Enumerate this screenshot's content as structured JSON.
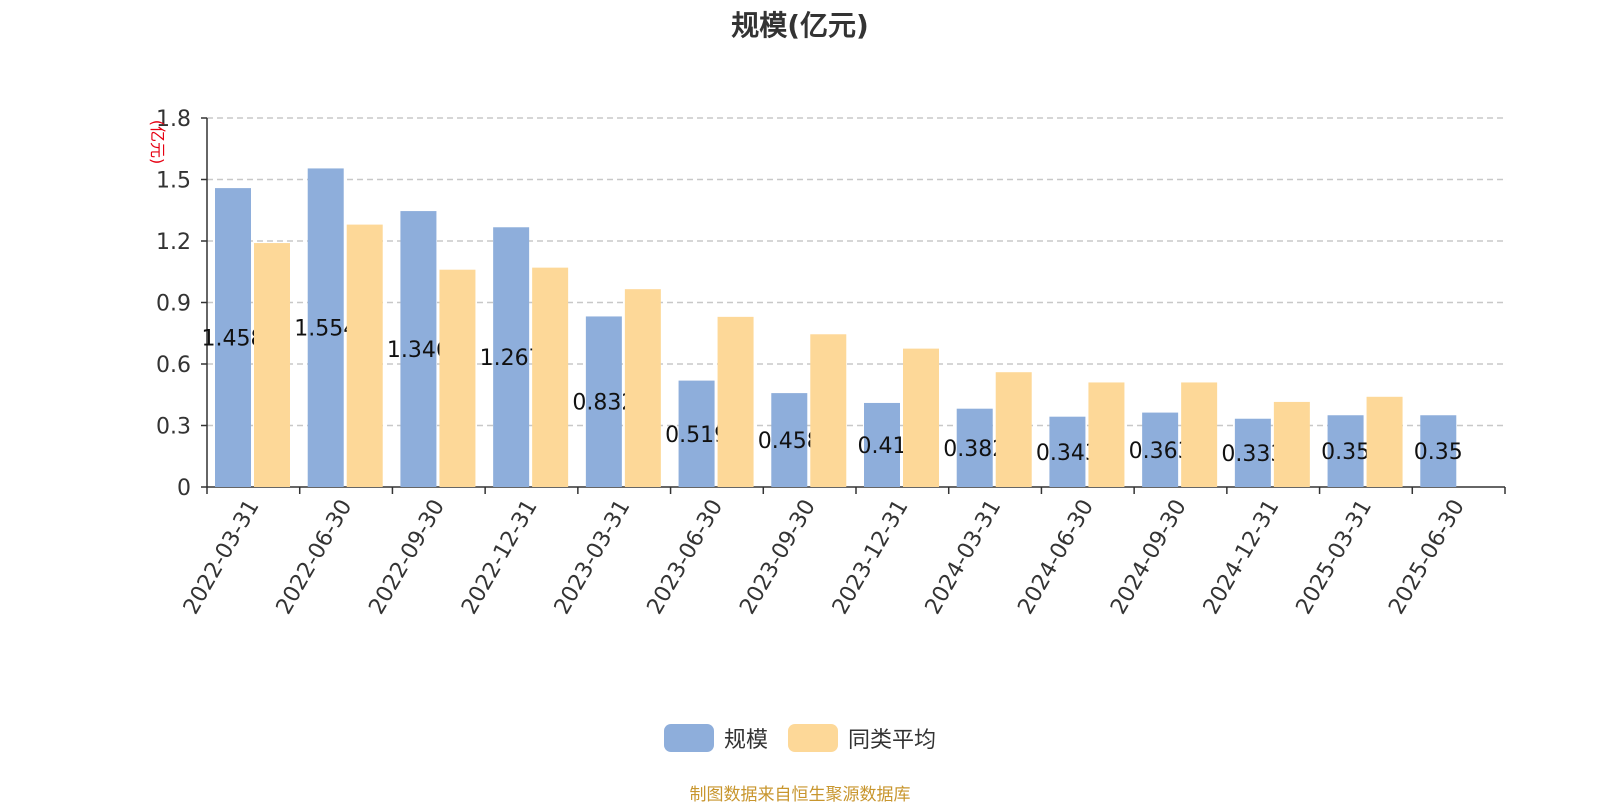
{
  "chart_data": {
    "type": "bar",
    "title": "规模(亿元)",
    "ylabel": "(亿元)",
    "ylim": [
      0,
      1.8
    ],
    "yticks": [
      "0",
      "0.3",
      "0.6",
      "0.9",
      "1.2",
      "1.5",
      "1.8"
    ],
    "grid": true,
    "legend_position": "bottom",
    "categories": [
      "2022-03-31",
      "2022-06-30",
      "2022-09-30",
      "2022-12-31",
      "2023-03-31",
      "2023-06-30",
      "2023-09-30",
      "2023-12-31",
      "2024-03-31",
      "2024-06-30",
      "2024-09-30",
      "2024-12-31",
      "2025-03-31",
      "2025-06-30"
    ],
    "series": [
      {
        "name": "规模",
        "color": "#8eaedb",
        "values": [
          1.458,
          1.554,
          1.346,
          1.267,
          0.832,
          0.519,
          0.458,
          0.41,
          0.382,
          0.343,
          0.363,
          0.333,
          0.35,
          0.35
        ],
        "labels": [
          "1.458",
          "1.554",
          "1.346",
          "1.267",
          "0.832",
          "0.519",
          "0.458",
          "0.41",
          "0.382",
          "0.343",
          "0.363",
          "0.333",
          "0.35",
          "0.35"
        ]
      },
      {
        "name": "同类平均",
        "color": "#fdd898",
        "values": [
          1.19,
          1.28,
          1.06,
          1.07,
          0.965,
          0.83,
          0.745,
          0.675,
          0.56,
          0.51,
          0.51,
          0.415,
          0.44,
          null
        ]
      }
    ]
  },
  "source": "制图数据来自恒生聚源数据库"
}
